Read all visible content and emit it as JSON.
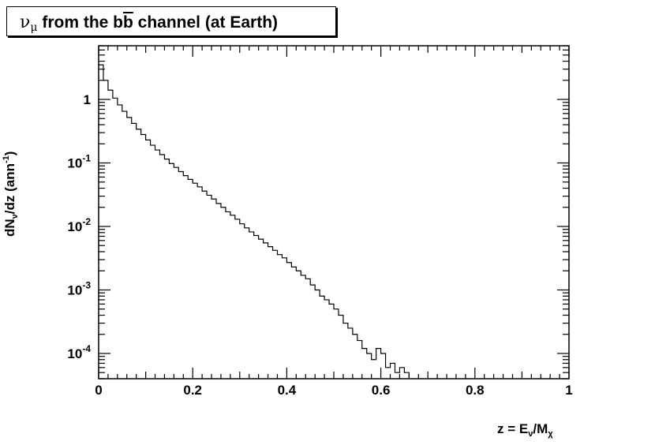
{
  "chart_data": {
    "type": "line",
    "style": "step-histogram",
    "title": {
      "particle": "ν",
      "particle_sub": "μ",
      "pre": "from the ",
      "b": "b",
      "bbar": "b",
      "post": " channel (at Earth)"
    },
    "ylabel": {
      "pre": "dN",
      "sub": "ν",
      "mid": "/dz (ann",
      "sup": "-1",
      "post": ")"
    },
    "xlabel": {
      "pre": "z = E",
      "sub": "ν",
      "mid": "/M",
      "sub2": "χ"
    },
    "xlim": [
      0,
      1
    ],
    "ylim": [
      4e-05,
      7
    ],
    "yscale": "log",
    "x_ticks": [
      "0",
      "0.2",
      "0.4",
      "0.6",
      "0.8",
      "1"
    ],
    "y_ticks": [
      {
        "value": 1,
        "base": "1",
        "exp": ""
      },
      {
        "value": 0.1,
        "base": "10",
        "exp": "-1"
      },
      {
        "value": 0.01,
        "base": "10",
        "exp": "-2"
      },
      {
        "value": 0.001,
        "base": "10",
        "exp": "-3"
      },
      {
        "value": 0.0001,
        "base": "10",
        "exp": "-4"
      }
    ],
    "grid": false,
    "series": [
      {
        "x": [
          0,
          0.01,
          0.02,
          0.03,
          0.04,
          0.05,
          0.06,
          0.07,
          0.08,
          0.09,
          0.1,
          0.11,
          0.12,
          0.13,
          0.14,
          0.15,
          0.16,
          0.17,
          0.18,
          0.19,
          0.2,
          0.21,
          0.22,
          0.23,
          0.24,
          0.25,
          0.26,
          0.27,
          0.28,
          0.29,
          0.3,
          0.31,
          0.32,
          0.33,
          0.34,
          0.35,
          0.36,
          0.37,
          0.38,
          0.39,
          0.4,
          0.41,
          0.42,
          0.43,
          0.44,
          0.45,
          0.46,
          0.47,
          0.48,
          0.49,
          0.5,
          0.51,
          0.52,
          0.53,
          0.54,
          0.55,
          0.56,
          0.57,
          0.58,
          0.59,
          0.6,
          0.61,
          0.62,
          0.63,
          0.64,
          0.65
        ],
        "y": [
          3.5,
          2.0,
          1.4,
          1.05,
          0.82,
          0.65,
          0.52,
          0.42,
          0.34,
          0.28,
          0.23,
          0.19,
          0.16,
          0.135,
          0.115,
          0.098,
          0.085,
          0.073,
          0.063,
          0.055,
          0.048,
          0.042,
          0.036,
          0.031,
          0.027,
          0.023,
          0.02,
          0.017,
          0.015,
          0.013,
          0.011,
          0.0095,
          0.0082,
          0.0072,
          0.0063,
          0.0055,
          0.0048,
          0.0042,
          0.0036,
          0.0032,
          0.0027,
          0.0023,
          0.002,
          0.0017,
          0.0015,
          0.0012,
          0.001,
          0.0008,
          0.0007,
          0.0006,
          0.0005,
          0.0004,
          0.0003,
          0.00025,
          0.0002,
          0.00016,
          0.00012,
          0.0001,
          8e-05,
          0.00012,
          0.0001,
          6e-05,
          7e-05,
          5e-05,
          6e-05,
          5e-05
        ]
      }
    ]
  }
}
